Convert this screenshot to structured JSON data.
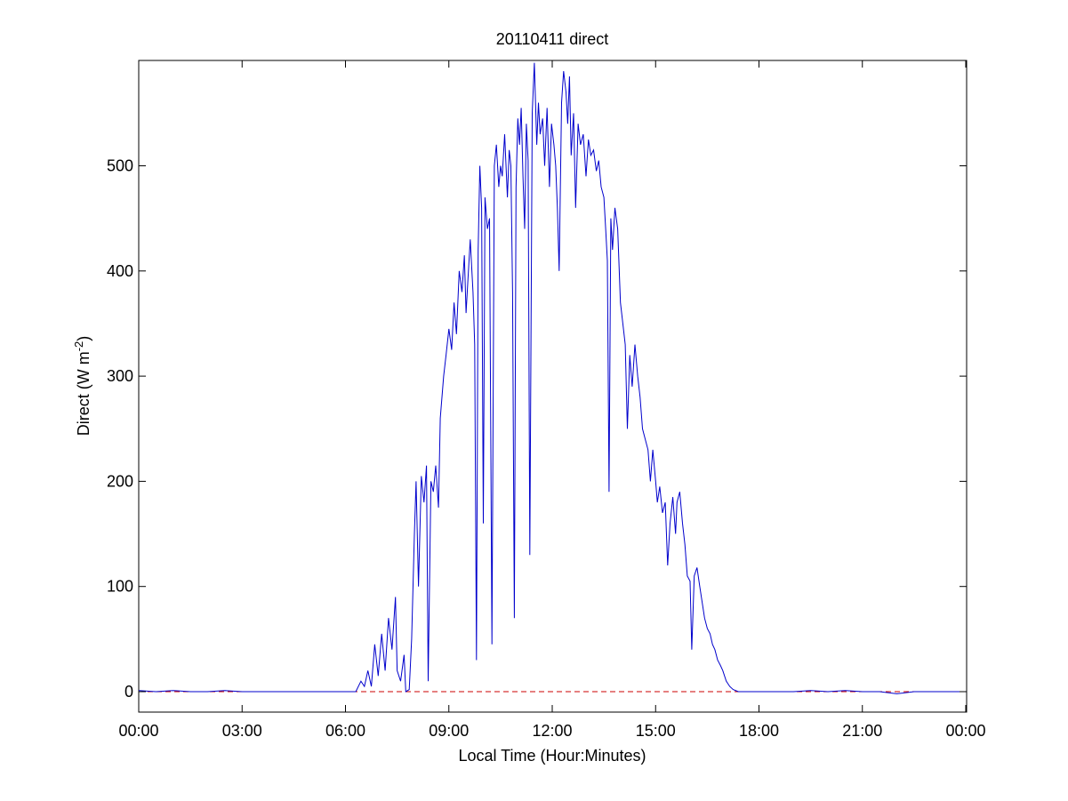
{
  "chart_data": {
    "type": "line",
    "title": "20110411 direct",
    "xlabel": "Local Time (Hour:Minutes)",
    "ylabel": {
      "prefix": "Direct (W m",
      "superscript": "-2",
      "suffix": ")"
    },
    "x_unit": "hours",
    "xlim": [
      0,
      24
    ],
    "ylim": [
      -20,
      600
    ],
    "x_ticks": [
      {
        "value": 0,
        "label": "00:00"
      },
      {
        "value": 3,
        "label": "03:00"
      },
      {
        "value": 6,
        "label": "06:00"
      },
      {
        "value": 9,
        "label": "09:00"
      },
      {
        "value": 12,
        "label": "12:00"
      },
      {
        "value": 15,
        "label": "15:00"
      },
      {
        "value": 18,
        "label": "18:00"
      },
      {
        "value": 21,
        "label": "21:00"
      },
      {
        "value": 24,
        "label": "00:00"
      }
    ],
    "y_ticks": [
      {
        "value": 0,
        "label": "0"
      },
      {
        "value": 100,
        "label": "100"
      },
      {
        "value": 200,
        "label": "200"
      },
      {
        "value": 300,
        "label": "300"
      },
      {
        "value": 400,
        "label": "400"
      },
      {
        "value": 500,
        "label": "500"
      }
    ],
    "grid": false,
    "legend": false,
    "reference_line": {
      "y": 0,
      "style": "dashed",
      "color": "#cc0000"
    },
    "series": [
      {
        "color": "#0000cc",
        "points": [
          [
            0.0,
            1
          ],
          [
            0.5,
            0
          ],
          [
            1.0,
            1
          ],
          [
            1.5,
            0
          ],
          [
            2.0,
            0
          ],
          [
            2.5,
            1
          ],
          [
            3.0,
            0
          ],
          [
            4.0,
            0
          ],
          [
            5.0,
            0
          ],
          [
            6.0,
            0
          ],
          [
            6.3,
            0
          ],
          [
            6.45,
            10
          ],
          [
            6.55,
            5
          ],
          [
            6.65,
            20
          ],
          [
            6.75,
            5
          ],
          [
            6.85,
            45
          ],
          [
            6.95,
            15
          ],
          [
            7.05,
            55
          ],
          [
            7.15,
            20
          ],
          [
            7.25,
            70
          ],
          [
            7.35,
            40
          ],
          [
            7.45,
            90
          ],
          [
            7.5,
            20
          ],
          [
            7.6,
            10
          ],
          [
            7.7,
            35
          ],
          [
            7.75,
            0
          ],
          [
            7.85,
            2
          ],
          [
            7.92,
            50
          ],
          [
            8.0,
            150
          ],
          [
            8.05,
            200
          ],
          [
            8.12,
            100
          ],
          [
            8.2,
            205
          ],
          [
            8.28,
            180
          ],
          [
            8.35,
            215
          ],
          [
            8.4,
            10
          ],
          [
            8.48,
            200
          ],
          [
            8.55,
            190
          ],
          [
            8.62,
            215
          ],
          [
            8.7,
            175
          ],
          [
            8.75,
            260
          ],
          [
            8.85,
            300
          ],
          [
            8.92,
            320
          ],
          [
            9.0,
            345
          ],
          [
            9.08,
            325
          ],
          [
            9.15,
            370
          ],
          [
            9.22,
            340
          ],
          [
            9.3,
            400
          ],
          [
            9.38,
            380
          ],
          [
            9.45,
            415
          ],
          [
            9.5,
            360
          ],
          [
            9.55,
            390
          ],
          [
            9.62,
            430
          ],
          [
            9.7,
            380
          ],
          [
            9.75,
            330
          ],
          [
            9.8,
            30
          ],
          [
            9.85,
            420
          ],
          [
            9.9,
            500
          ],
          [
            9.95,
            460
          ],
          [
            10.0,
            160
          ],
          [
            10.05,
            470
          ],
          [
            10.12,
            440
          ],
          [
            10.18,
            450
          ],
          [
            10.25,
            45
          ],
          [
            10.32,
            500
          ],
          [
            10.38,
            520
          ],
          [
            10.45,
            480
          ],
          [
            10.5,
            500
          ],
          [
            10.55,
            490
          ],
          [
            10.62,
            530
          ],
          [
            10.7,
            470
          ],
          [
            10.75,
            515
          ],
          [
            10.8,
            500
          ],
          [
            10.85,
            380
          ],
          [
            10.9,
            70
          ],
          [
            10.95,
            480
          ],
          [
            11.0,
            545
          ],
          [
            11.05,
            520
          ],
          [
            11.1,
            555
          ],
          [
            11.15,
            490
          ],
          [
            11.2,
            440
          ],
          [
            11.25,
            540
          ],
          [
            11.3,
            505
          ],
          [
            11.35,
            130
          ],
          [
            11.42,
            550
          ],
          [
            11.48,
            598
          ],
          [
            11.55,
            520
          ],
          [
            11.6,
            560
          ],
          [
            11.65,
            530
          ],
          [
            11.72,
            545
          ],
          [
            11.78,
            500
          ],
          [
            11.85,
            555
          ],
          [
            11.92,
            480
          ],
          [
            11.98,
            540
          ],
          [
            12.05,
            520
          ],
          [
            12.1,
            500
          ],
          [
            12.15,
            460
          ],
          [
            12.2,
            400
          ],
          [
            12.27,
            560
          ],
          [
            12.33,
            590
          ],
          [
            12.4,
            570
          ],
          [
            12.45,
            540
          ],
          [
            12.5,
            585
          ],
          [
            12.55,
            510
          ],
          [
            12.62,
            550
          ],
          [
            12.68,
            460
          ],
          [
            12.75,
            540
          ],
          [
            12.82,
            520
          ],
          [
            12.9,
            530
          ],
          [
            12.98,
            490
          ],
          [
            13.05,
            525
          ],
          [
            13.12,
            510
          ],
          [
            13.2,
            515
          ],
          [
            13.28,
            495
          ],
          [
            13.35,
            505
          ],
          [
            13.42,
            480
          ],
          [
            13.5,
            470
          ],
          [
            13.55,
            440
          ],
          [
            13.6,
            410
          ],
          [
            13.65,
            190
          ],
          [
            13.7,
            450
          ],
          [
            13.75,
            420
          ],
          [
            13.82,
            460
          ],
          [
            13.9,
            440
          ],
          [
            13.98,
            370
          ],
          [
            14.05,
            350
          ],
          [
            14.12,
            330
          ],
          [
            14.18,
            250
          ],
          [
            14.25,
            320
          ],
          [
            14.32,
            290
          ],
          [
            14.4,
            330
          ],
          [
            14.48,
            300
          ],
          [
            14.55,
            280
          ],
          [
            14.62,
            250
          ],
          [
            14.7,
            240
          ],
          [
            14.78,
            230
          ],
          [
            14.85,
            200
          ],
          [
            14.92,
            230
          ],
          [
            15.0,
            200
          ],
          [
            15.05,
            180
          ],
          [
            15.12,
            195
          ],
          [
            15.2,
            170
          ],
          [
            15.28,
            180
          ],
          [
            15.35,
            120
          ],
          [
            15.42,
            160
          ],
          [
            15.5,
            185
          ],
          [
            15.58,
            150
          ],
          [
            15.62,
            180
          ],
          [
            15.7,
            190
          ],
          [
            15.78,
            160
          ],
          [
            15.85,
            140
          ],
          [
            15.92,
            110
          ],
          [
            16.0,
            105
          ],
          [
            16.05,
            40
          ],
          [
            16.12,
            110
          ],
          [
            16.2,
            118
          ],
          [
            16.28,
            100
          ],
          [
            16.35,
            85
          ],
          [
            16.42,
            70
          ],
          [
            16.5,
            60
          ],
          [
            16.58,
            55
          ],
          [
            16.65,
            45
          ],
          [
            16.72,
            40
          ],
          [
            16.8,
            30
          ],
          [
            16.88,
            25
          ],
          [
            16.95,
            20
          ],
          [
            17.05,
            10
          ],
          [
            17.15,
            5
          ],
          [
            17.25,
            2
          ],
          [
            17.4,
            0
          ],
          [
            18.0,
            0
          ],
          [
            19.0,
            0
          ],
          [
            19.5,
            1
          ],
          [
            20.0,
            0
          ],
          [
            20.5,
            1
          ],
          [
            21.0,
            0
          ],
          [
            21.5,
            0
          ],
          [
            22.0,
            -2
          ],
          [
            22.5,
            0
          ],
          [
            23.0,
            0
          ],
          [
            24.0,
            0
          ]
        ]
      }
    ]
  }
}
